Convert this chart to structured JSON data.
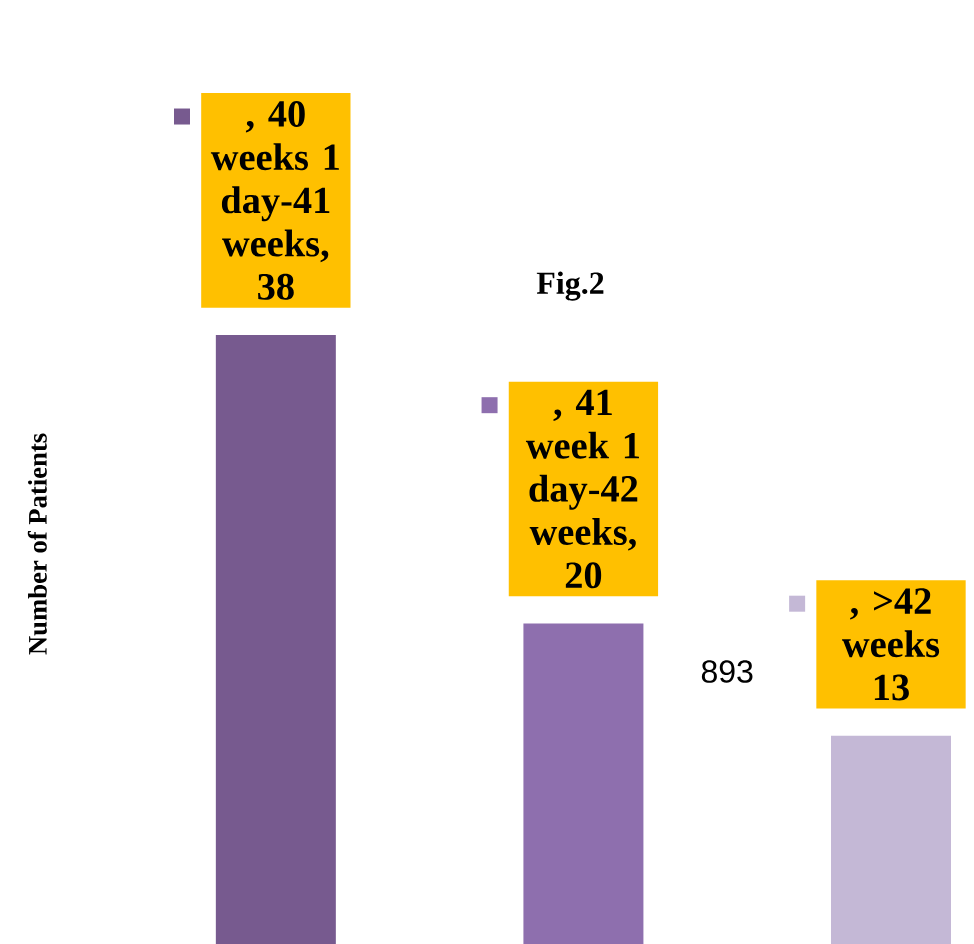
{
  "chart_data": {
    "type": "bar",
    "title": "Fig.2",
    "ylabel": "Number of Patients",
    "categories": [
      null,
      null,
      null
    ],
    "values": [
      38,
      20,
      13
    ],
    "colors": [
      "#775a8f",
      "#8e6fae",
      "#c4b8d6"
    ],
    "value_labels": [
      ", 40 weeks 1 day-41 weeks, 38",
      ", 41 week 1 day-42 weeks, 20",
      ", >42 weeks 13"
    ],
    "annotations": [
      "893"
    ]
  }
}
